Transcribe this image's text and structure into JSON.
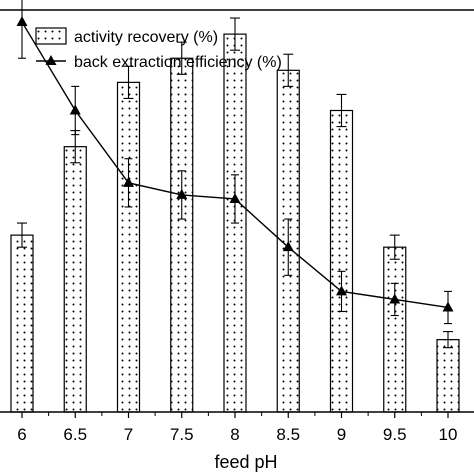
{
  "chart_data": {
    "type": "bar",
    "title": "",
    "xlabel": "feed pH",
    "ylabel": "",
    "categories": [
      "6",
      "6.5",
      "7",
      "7.5",
      "8",
      "8.5",
      "9",
      "9.5",
      "10"
    ],
    "ylim": [
      0,
      100
    ],
    "grid": false,
    "legend_position": "top-left",
    "series": [
      {
        "name": "activity recovery (%)",
        "kind": "bar",
        "pattern": "dotted",
        "values": [
          44,
          66,
          82,
          88,
          94,
          85,
          75,
          41,
          18
        ],
        "errors": [
          3,
          4,
          4,
          4,
          4,
          4,
          4,
          3,
          2
        ]
      },
      {
        "name": "back extraction efficiency (%)",
        "kind": "line",
        "marker": "triangle",
        "values": [
          97,
          75,
          57,
          54,
          53,
          41,
          30,
          28,
          26
        ],
        "errors": [
          9,
          6,
          6,
          6,
          6,
          7,
          5,
          4,
          4
        ]
      }
    ],
    "colors": {
      "bar_fill": "#ffffff",
      "bar_stroke": "#000000",
      "line": "#000000"
    }
  }
}
